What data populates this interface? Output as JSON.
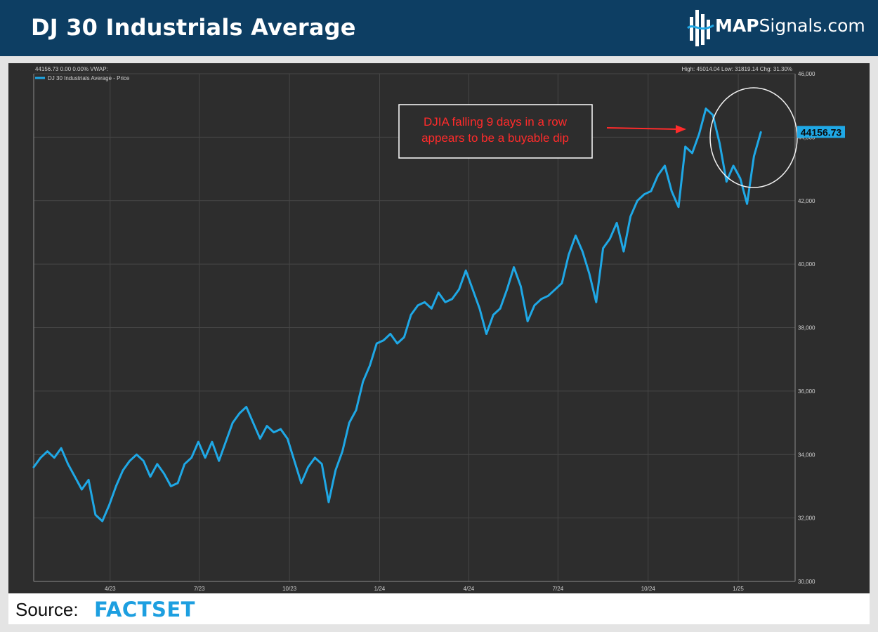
{
  "header": {
    "title": "DJ 30 Industrials Average",
    "logo_bold": "MAP",
    "logo_rest": "Signals.com"
  },
  "footer": {
    "source_label": "Source:",
    "source_brand": "FACTSET"
  },
  "colors": {
    "header_bg": "#0d3e63",
    "chart_bg": "#2d2d2d",
    "series_line": "#1fa8e6",
    "annotation_text": "#ff2b2b",
    "brand_blue": "#1d9fe0"
  },
  "chart_data": {
    "type": "line",
    "info_left": "44156.73 0.00 0.00% VWAP:",
    "info_right": "High: 45014.04 Low: 31819.14 Chg: 31.30%",
    "last_price_label": "44156.73",
    "annotation": {
      "line1": "DJIA falling 9 days in a row",
      "line2": "appears to be a buyable dip"
    },
    "x_ticks": [
      "4/23",
      "7/23",
      "10/23",
      "1/24",
      "4/24",
      "7/24",
      "10/24",
      "1/25"
    ],
    "y_ticks": [
      "46,000",
      "44,000",
      "42,000",
      "40,000",
      "38,000",
      "36,000",
      "34,000",
      "32,000",
      "30,000"
    ],
    "y_tick_values": [
      46000,
      44000,
      42000,
      40000,
      38000,
      36000,
      34000,
      32000,
      30000
    ],
    "ylim": [
      30000,
      46000
    ],
    "grid": true,
    "legend_position": "top-left",
    "series": [
      {
        "name": "DJ 30 Industrials Average - Price",
        "points": [
          [
            "2023-01-13",
            33600
          ],
          [
            "2023-01-20",
            33900
          ],
          [
            "2023-01-27",
            34100
          ],
          [
            "2023-02-03",
            33900
          ],
          [
            "2023-02-10",
            34200
          ],
          [
            "2023-02-17",
            33700
          ],
          [
            "2023-02-24",
            33300
          ],
          [
            "2023-03-03",
            32900
          ],
          [
            "2023-03-10",
            33200
          ],
          [
            "2023-03-17",
            32100
          ],
          [
            "2023-03-24",
            31900
          ],
          [
            "2023-03-31",
            32400
          ],
          [
            "2023-04-07",
            33000
          ],
          [
            "2023-04-14",
            33500
          ],
          [
            "2023-04-21",
            33800
          ],
          [
            "2023-04-28",
            34000
          ],
          [
            "2023-05-05",
            33800
          ],
          [
            "2023-05-12",
            33300
          ],
          [
            "2023-05-19",
            33700
          ],
          [
            "2023-05-26",
            33400
          ],
          [
            "2023-06-02",
            33000
          ],
          [
            "2023-06-09",
            33100
          ],
          [
            "2023-06-16",
            33700
          ],
          [
            "2023-06-23",
            33900
          ],
          [
            "2023-06-30",
            34400
          ],
          [
            "2023-07-07",
            33900
          ],
          [
            "2023-07-14",
            34400
          ],
          [
            "2023-07-21",
            33800
          ],
          [
            "2023-07-28",
            34400
          ],
          [
            "2023-08-04",
            35000
          ],
          [
            "2023-08-11",
            35300
          ],
          [
            "2023-08-18",
            35500
          ],
          [
            "2023-08-25",
            35000
          ],
          [
            "2023-09-01",
            34500
          ],
          [
            "2023-09-08",
            34900
          ],
          [
            "2023-09-15",
            34700
          ],
          [
            "2023-09-22",
            34800
          ],
          [
            "2023-09-29",
            34500
          ],
          [
            "2023-10-06",
            33800
          ],
          [
            "2023-10-13",
            33100
          ],
          [
            "2023-10-20",
            33600
          ],
          [
            "2023-10-27",
            33900
          ],
          [
            "2023-11-03",
            33700
          ],
          [
            "2023-11-10",
            32500
          ],
          [
            "2023-11-17",
            33500
          ],
          [
            "2023-11-24",
            34100
          ],
          [
            "2023-12-01",
            35000
          ],
          [
            "2023-12-08",
            35400
          ],
          [
            "2023-12-15",
            36300
          ],
          [
            "2023-12-22",
            36800
          ],
          [
            "2023-12-29",
            37500
          ],
          [
            "2024-01-05",
            37600
          ],
          [
            "2024-01-12",
            37800
          ],
          [
            "2024-01-19",
            37500
          ],
          [
            "2024-01-26",
            37700
          ],
          [
            "2024-02-02",
            38400
          ],
          [
            "2024-02-09",
            38700
          ],
          [
            "2024-02-16",
            38800
          ],
          [
            "2024-02-23",
            38600
          ],
          [
            "2024-03-01",
            39100
          ],
          [
            "2024-03-08",
            38800
          ],
          [
            "2024-03-15",
            38900
          ],
          [
            "2024-03-22",
            39200
          ],
          [
            "2024-03-29",
            39800
          ],
          [
            "2024-04-05",
            39200
          ],
          [
            "2024-04-12",
            38600
          ],
          [
            "2024-04-19",
            37800
          ],
          [
            "2024-04-26",
            38400
          ],
          [
            "2024-05-03",
            38600
          ],
          [
            "2024-05-10",
            39200
          ],
          [
            "2024-05-17",
            39900
          ],
          [
            "2024-05-24",
            39300
          ],
          [
            "2024-05-31",
            38200
          ],
          [
            "2024-06-07",
            38700
          ],
          [
            "2024-06-14",
            38900
          ],
          [
            "2024-06-21",
            39000
          ],
          [
            "2024-06-28",
            39200
          ],
          [
            "2024-07-05",
            39400
          ],
          [
            "2024-07-12",
            40300
          ],
          [
            "2024-07-19",
            40900
          ],
          [
            "2024-07-26",
            40400
          ],
          [
            "2024-08-02",
            39700
          ],
          [
            "2024-08-09",
            38800
          ],
          [
            "2024-08-16",
            40500
          ],
          [
            "2024-08-23",
            40800
          ],
          [
            "2024-08-30",
            41300
          ],
          [
            "2024-09-06",
            40400
          ],
          [
            "2024-09-13",
            41500
          ],
          [
            "2024-09-20",
            42000
          ],
          [
            "2024-09-27",
            42200
          ],
          [
            "2024-10-04",
            42300
          ],
          [
            "2024-10-11",
            42800
          ],
          [
            "2024-10-18",
            43100
          ],
          [
            "2024-10-25",
            42300
          ],
          [
            "2024-11-01",
            41800
          ],
          [
            "2024-11-08",
            43700
          ],
          [
            "2024-11-15",
            43500
          ],
          [
            "2024-11-22",
            44100
          ],
          [
            "2024-11-29",
            44900
          ],
          [
            "2024-12-06",
            44700
          ],
          [
            "2024-12-13",
            43800
          ],
          [
            "2024-12-20",
            42600
          ],
          [
            "2024-12-27",
            43100
          ],
          [
            "2025-01-03",
            42700
          ],
          [
            "2025-01-10",
            41900
          ],
          [
            "2025-01-17",
            43400
          ],
          [
            "2025-01-24",
            44156.73
          ]
        ]
      }
    ]
  }
}
